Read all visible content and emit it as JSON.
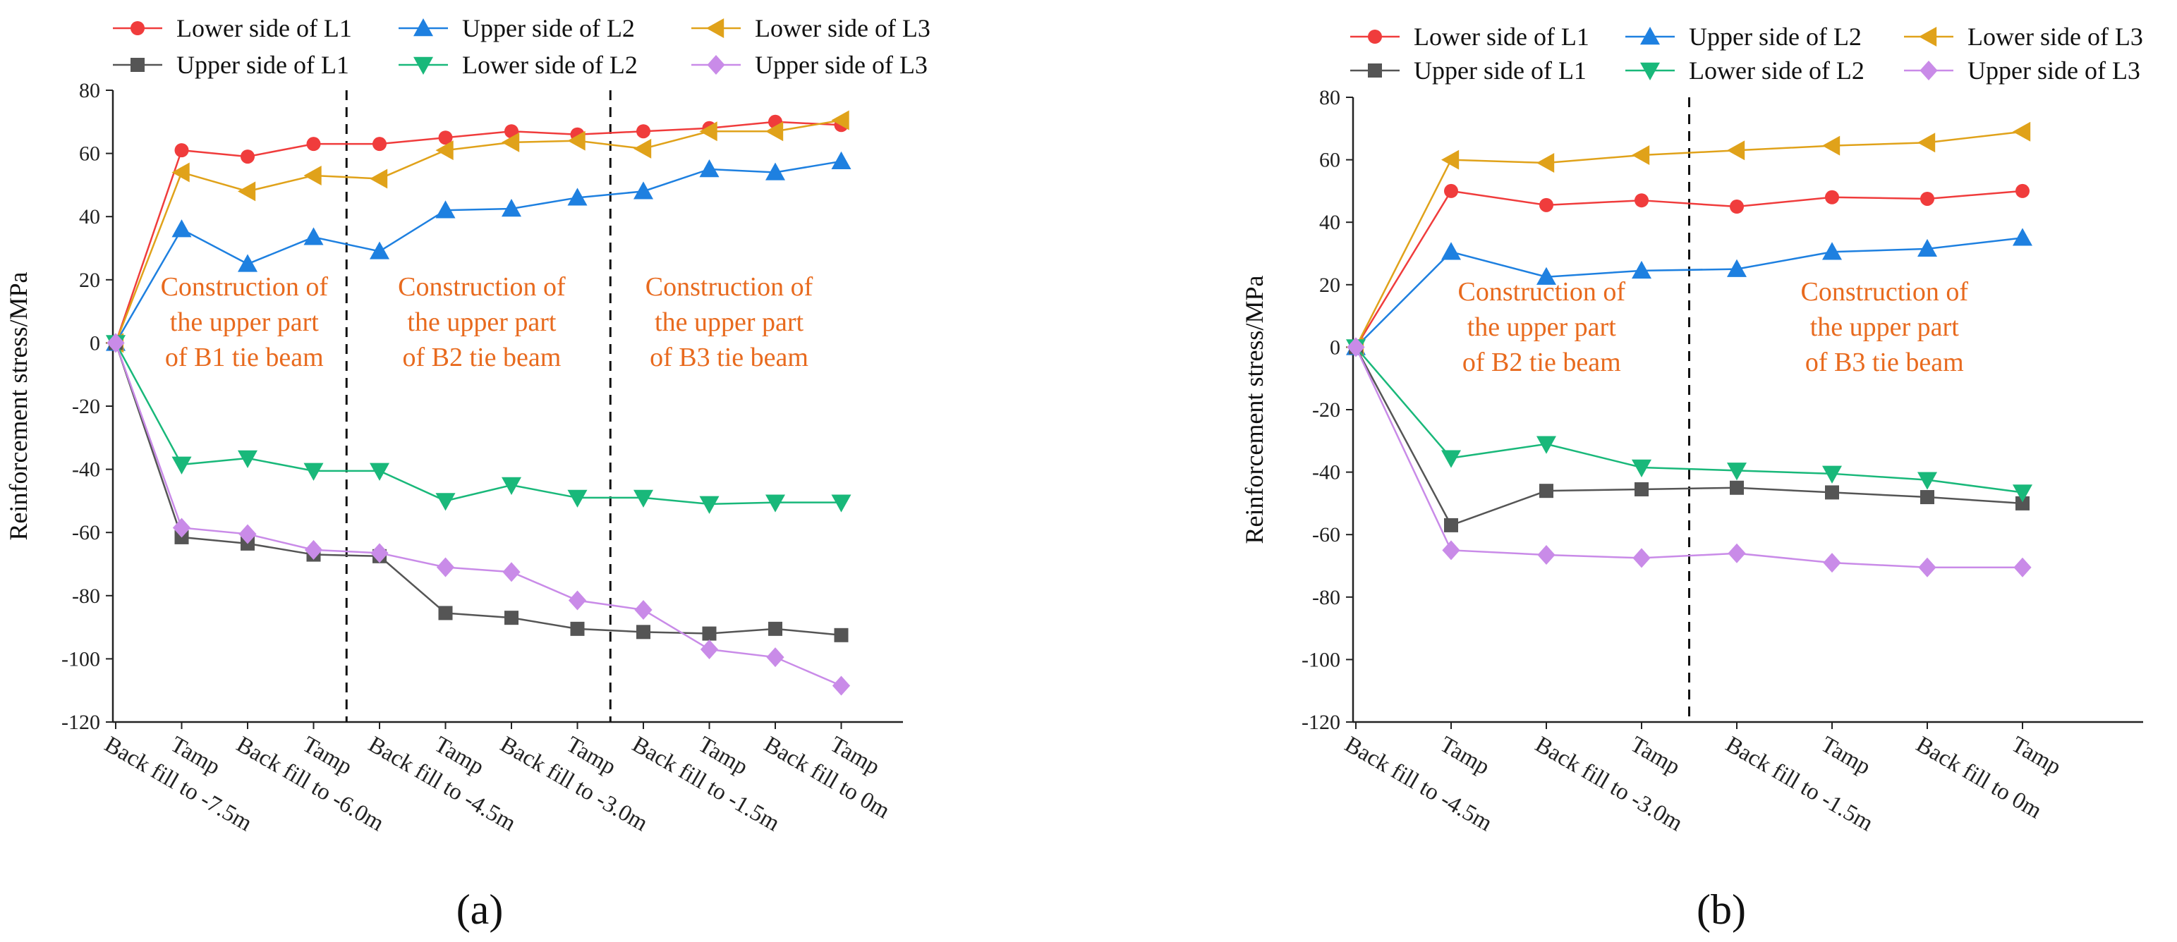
{
  "colors": {
    "L1_lower": "#f03c3c",
    "L1_upper": "#555555",
    "L2_upper": "#1e80e0",
    "L2_lower": "#19b87a",
    "L3_lower": "#e0a21a",
    "L3_upper": "#c98be8",
    "annotation": "#e86a1e",
    "axis": "#222222"
  },
  "chart_data": [
    {
      "panel_label": "(a)",
      "type": "line",
      "ylabel": "Reinforcement stress/MPa",
      "ylim": [
        -120,
        80
      ],
      "yticks": [
        -120,
        -100,
        -80,
        -60,
        -40,
        -20,
        0,
        20,
        40,
        60,
        80
      ],
      "categories": [
        "Back fill to -7.5m",
        "Tamp",
        "Back fill to -6.0m",
        "Tamp",
        "Back fill to -4.5m",
        "Tamp",
        "Back fill to -3.0m",
        "Tamp",
        "Back fill to -1.5m",
        "Tamp",
        "Back fill to 0m",
        "Tamp"
      ],
      "dividers_after_index": [
        3.5,
        7.5
      ],
      "annotations": [
        {
          "lines": [
            "Construction of",
            "the upper part",
            "of B1 tie beam"
          ],
          "center_index": 1.95,
          "top_value": 15
        },
        {
          "lines": [
            "Construction of",
            "the upper part",
            "of B2 tie beam"
          ],
          "center_index": 5.55,
          "top_value": 15
        },
        {
          "lines": [
            "Construction of",
            "the upper part",
            "of B3 tie beam"
          ],
          "center_index": 9.3,
          "top_value": 15
        }
      ],
      "series": [
        {
          "key": "L1_lower",
          "name": "Lower side of L1",
          "marker": "circle",
          "values": [
            0,
            61,
            59,
            63,
            63,
            65,
            67,
            66,
            67,
            68,
            70,
            69
          ]
        },
        {
          "key": "L2_upper",
          "name": "Upper side of L2",
          "marker": "triangle-up",
          "values": [
            0,
            36,
            25,
            33.5,
            29,
            42,
            42.5,
            46,
            48,
            55,
            54,
            57.5
          ]
        },
        {
          "key": "L3_lower",
          "name": "Lower side of L3",
          "marker": "triangle-left",
          "values": [
            0,
            54,
            48,
            53,
            52,
            61,
            63.5,
            64,
            61.5,
            67,
            67,
            70.5
          ]
        },
        {
          "key": "L1_upper",
          "name": "Upper side of L1",
          "marker": "square",
          "values": [
            0,
            -61.5,
            -63.5,
            -67,
            -67.5,
            -85.5,
            -87,
            -90.5,
            -91.5,
            -92,
            -90.5,
            -92.5
          ]
        },
        {
          "key": "L2_lower",
          "name": "Lower side of L2",
          "marker": "triangle-down",
          "values": [
            0,
            -38.5,
            -36.5,
            -40.5,
            -40.5,
            -50,
            -45,
            -49,
            -49,
            -51,
            -50.5,
            -50.5
          ]
        },
        {
          "key": "L3_upper",
          "name": "Upper side of L3",
          "marker": "diamond",
          "values": [
            0,
            -58.5,
            -60.5,
            -65.5,
            -66.5,
            -71,
            -72.5,
            -81.5,
            -84.5,
            -97,
            -99.5,
            -108.5
          ]
        }
      ]
    },
    {
      "panel_label": "(b)",
      "type": "line",
      "ylabel": "Reinforcement stress/MPa",
      "ylim": [
        -120,
        80
      ],
      "yticks": [
        -120,
        -100,
        -80,
        -60,
        -40,
        -20,
        0,
        20,
        40,
        60,
        80
      ],
      "categories": [
        "Back fill to -4.5m",
        "Tamp",
        "Back fill to -3.0m",
        "Tamp",
        "Back fill to -1.5m",
        "Tamp",
        "Back fill to 0m",
        "Tamp"
      ],
      "dividers_after_index": [
        3.5
      ],
      "annotations": [
        {
          "lines": [
            "Construction of",
            "the upper part",
            "of B2 tie beam"
          ],
          "center_index": 1.95,
          "top_value": 15
        },
        {
          "lines": [
            "Construction of",
            "the upper part",
            "of B3 tie beam"
          ],
          "center_index": 5.55,
          "top_value": 15
        }
      ],
      "series": [
        {
          "key": "L1_lower",
          "name": "Lower side of L1",
          "marker": "circle",
          "values": [
            0,
            50,
            45.5,
            47,
            45,
            48,
            47.5,
            50
          ]
        },
        {
          "key": "L2_upper",
          "name": "Upper side of L2",
          "marker": "triangle-up",
          "values": [
            0,
            30.5,
            22.5,
            24.5,
            25,
            30.5,
            31.5,
            35
          ]
        },
        {
          "key": "L3_lower",
          "name": "Lower side of L3",
          "marker": "triangle-left",
          "values": [
            0,
            60,
            59,
            61.5,
            63,
            64.5,
            65.5,
            69
          ]
        },
        {
          "key": "L1_upper",
          "name": "Upper side of L1",
          "marker": "square",
          "values": [
            0,
            -57,
            -46,
            -45.5,
            -45,
            -46.5,
            -48,
            -50
          ]
        },
        {
          "key": "L2_lower",
          "name": "Lower side of L2",
          "marker": "triangle-down",
          "values": [
            0,
            -35.5,
            -31,
            -38.5,
            -39.5,
            -40.5,
            -42.5,
            -46.5
          ]
        },
        {
          "key": "L3_upper",
          "name": "Upper side of L3",
          "marker": "diamond",
          "values": [
            0,
            -65,
            -66.5,
            -67.5,
            -66,
            -69,
            -70.5,
            -70.5
          ]
        }
      ]
    }
  ]
}
